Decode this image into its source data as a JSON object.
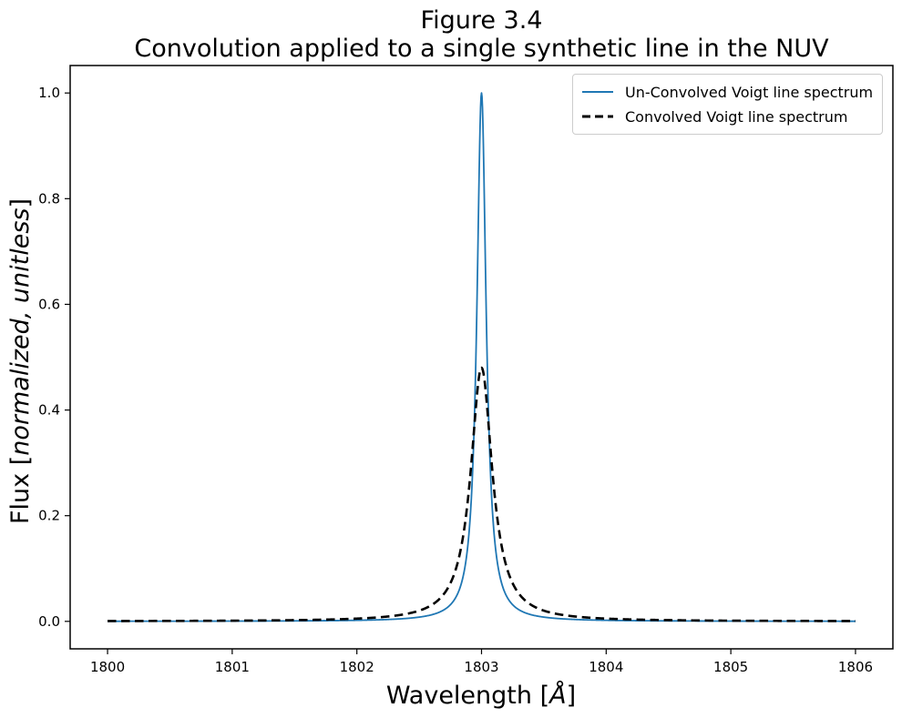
{
  "chart_data": {
    "type": "line",
    "title": "Figure 3.4",
    "subtitle": "Convolution applied to a single synthetic line in the NUV",
    "xlabel": {
      "text": "Wavelength [Å]",
      "prefix": "Wavelength [",
      "italic_part": "Å",
      "suffix": "]"
    },
    "ylabel": {
      "text": "Flux [normalized, unitless]",
      "prefix": "Flux [",
      "italic_part": "normalized, unitless",
      "suffix": "]"
    },
    "xlim": [
      1799.7,
      1806.3
    ],
    "ylim": [
      -0.052,
      1.052
    ],
    "x_ticks": [
      {
        "value": 1800,
        "label": "1800"
      },
      {
        "value": 1801,
        "label": "1801"
      },
      {
        "value": 1802,
        "label": "1802"
      },
      {
        "value": 1803,
        "label": "1803"
      },
      {
        "value": 1804,
        "label": "1804"
      },
      {
        "value": 1805,
        "label": "1805"
      },
      {
        "value": 1806,
        "label": "1806"
      }
    ],
    "y_ticks": [
      {
        "value": 0.0,
        "label": "0.0"
      },
      {
        "value": 0.2,
        "label": "0.2"
      },
      {
        "value": 0.4,
        "label": "0.4"
      },
      {
        "value": 0.6,
        "label": "0.6"
      },
      {
        "value": 0.8,
        "label": "0.8"
      },
      {
        "value": 1.0,
        "label": "1.0"
      }
    ],
    "grid": false,
    "legend_position": "upper right",
    "series": [
      {
        "name": "Un-Convolved Voigt line spectrum",
        "color": "#1f77b4",
        "line_style": "solid",
        "line_width": 1.8,
        "profile": "lorentzian",
        "center_wavelength_angstrom": 1803.0,
        "peak_flux": 1.0,
        "hwhm_angstrom": 0.045,
        "baseline_flux": 0.0,
        "x_start": 1800.0,
        "x_end": 1806.0
      },
      {
        "name": "Convolved Voigt line spectrum",
        "color": "#000000",
        "line_style": "dashed",
        "line_width": 2.6,
        "profile": "lorentzian",
        "center_wavelength_angstrom": 1803.0,
        "peak_flux": 0.48,
        "hwhm_angstrom": 0.105,
        "baseline_flux": 0.0,
        "x_start": 1800.0,
        "x_end": 1806.0
      }
    ],
    "key_points": {
      "peak_wavelength_angstrom": 1803.0,
      "unconvolved_peak_flux": 1.0,
      "convolved_peak_flux": 0.48,
      "baseline_flux": 0.0
    }
  }
}
